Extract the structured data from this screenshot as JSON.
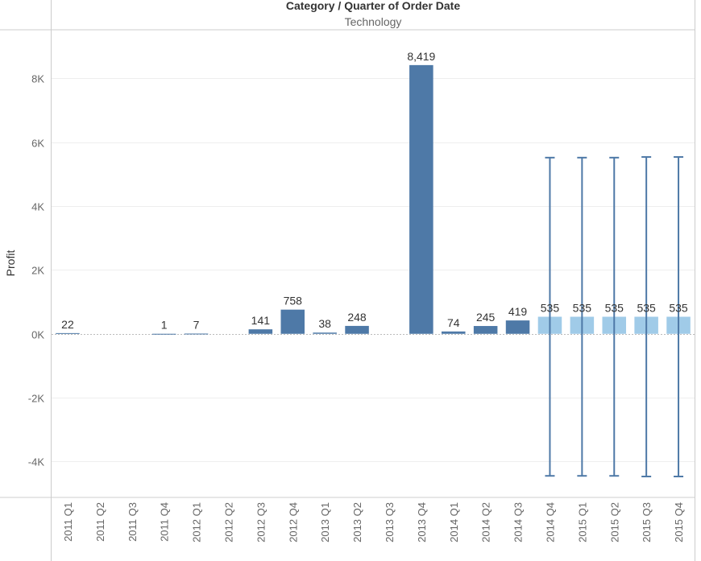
{
  "header": {
    "title": "Category / Quarter of Order Date",
    "subtitle": "Technology"
  },
  "colors": {
    "actual": "#4e79a7",
    "forecast": "#a0cbe8",
    "error_bar": "#4e79a7",
    "grid": "#eeeeee",
    "zero_line": "#bbbbbb",
    "frame": "#cccccc"
  },
  "chart_data": {
    "type": "bar",
    "title": "Category / Quarter of Order Date",
    "subtitle": "Technology",
    "xlabel": "",
    "ylabel": "Profit",
    "ylim": [
      -5100,
      9500
    ],
    "yticks": [
      -4000,
      -2000,
      0,
      2000,
      4000,
      6000,
      8000
    ],
    "ytick_labels": [
      "-4K",
      "-2K",
      "0K",
      "2K",
      "4K",
      "6K",
      "8K"
    ],
    "grid": true,
    "categories": [
      "2011 Q1",
      "2011 Q2",
      "2011 Q3",
      "2011 Q4",
      "2012 Q1",
      "2012 Q2",
      "2012 Q3",
      "2012 Q4",
      "2013 Q1",
      "2013 Q2",
      "2013 Q3",
      "2013 Q4",
      "2014 Q1",
      "2014 Q2",
      "2014 Q3",
      "2014 Q4",
      "2015 Q1",
      "2015 Q2",
      "2015 Q3",
      "2015 Q4"
    ],
    "series": [
      {
        "values": [
          22,
          null,
          null,
          1,
          7,
          null,
          141,
          758,
          38,
          248,
          null,
          8419,
          74,
          245,
          419,
          null,
          null,
          null,
          null,
          null
        ],
        "labels": [
          "22",
          "",
          "",
          "1",
          "7",
          "",
          "141",
          "758",
          "38",
          "248",
          "",
          "8,419",
          "74",
          "245",
          "419",
          "",
          "",
          "",
          "",
          ""
        ]
      },
      {
        "values": [
          null,
          null,
          null,
          null,
          null,
          null,
          null,
          null,
          null,
          null,
          null,
          null,
          null,
          null,
          null,
          535,
          535,
          535,
          535,
          535
        ],
        "labels": [
          "",
          "",
          "",
          "",
          "",
          "",
          "",
          "",
          "",
          "",
          "",
          "",
          "",
          "",
          "",
          "535",
          "535",
          "535",
          "535",
          "535"
        ],
        "error_low": [
          null,
          null,
          null,
          null,
          null,
          null,
          null,
          null,
          null,
          null,
          null,
          null,
          null,
          null,
          null,
          -4450,
          -4450,
          -4450,
          -4470,
          -4470
        ],
        "error_high": [
          null,
          null,
          null,
          null,
          null,
          null,
          null,
          null,
          null,
          null,
          null,
          null,
          null,
          null,
          null,
          5520,
          5520,
          5520,
          5540,
          5540
        ]
      }
    ]
  }
}
